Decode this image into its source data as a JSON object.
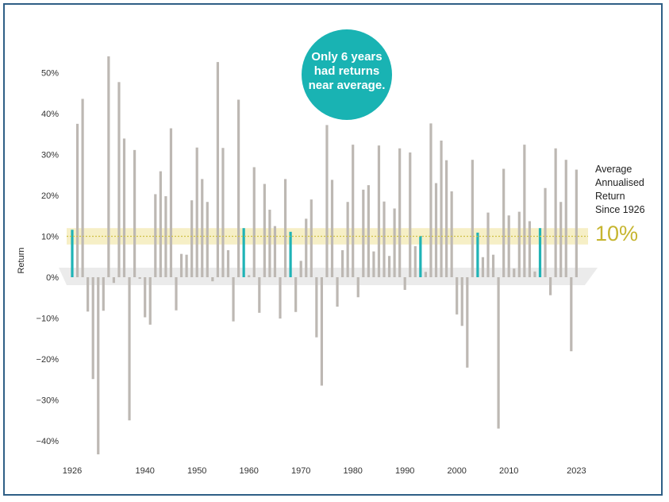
{
  "chart_data": {
    "type": "bar",
    "title": "",
    "xlabel": "",
    "ylabel": "Return",
    "ylim": [
      -45,
      55
    ],
    "y_ticks": [
      {
        "value": 50,
        "label": "50%"
      },
      {
        "value": 40,
        "label": "40%"
      },
      {
        "value": 30,
        "label": "30%"
      },
      {
        "value": 20,
        "label": "20%"
      },
      {
        "value": 10,
        "label": "10%"
      },
      {
        "value": 0,
        "label": "0%"
      },
      {
        "value": -10,
        "label": "−10%"
      },
      {
        "value": -20,
        "label": "−20%"
      },
      {
        "value": -30,
        "label": "−30%"
      },
      {
        "value": -40,
        "label": "−40%"
      }
    ],
    "x_ticks": [
      {
        "year": 1926,
        "label": "1926"
      },
      {
        "year": 1940,
        "label": "1940"
      },
      {
        "year": 1950,
        "label": "1950"
      },
      {
        "year": 1960,
        "label": "1960"
      },
      {
        "year": 1970,
        "label": "1970"
      },
      {
        "year": 1980,
        "label": "1980"
      },
      {
        "year": 1990,
        "label": "1990"
      },
      {
        "year": 2000,
        "label": "2000"
      },
      {
        "year": 2010,
        "label": "2010"
      },
      {
        "year": 2023,
        "label": "2023"
      }
    ],
    "start_year": 1926,
    "end_year": 2023,
    "returns": [
      11.6,
      37.5,
      43.6,
      -8.4,
      -24.9,
      -43.3,
      -8.2,
      54.0,
      -1.4,
      47.7,
      33.9,
      -35.0,
      31.1,
      -0.4,
      -9.8,
      -11.6,
      20.3,
      25.9,
      19.8,
      36.4,
      -8.1,
      5.7,
      5.5,
      18.8,
      31.7,
      24.0,
      18.4,
      -1.0,
      52.6,
      31.6,
      6.6,
      -10.8,
      43.4,
      12.0,
      0.5,
      26.9,
      -8.7,
      22.8,
      16.5,
      12.5,
      -10.1,
      24.0,
      11.1,
      -8.5,
      4.0,
      14.3,
      19.0,
      -14.7,
      -26.5,
      37.2,
      23.8,
      -7.2,
      6.6,
      18.4,
      32.4,
      -4.9,
      21.4,
      22.5,
      6.3,
      32.2,
      18.5,
      5.2,
      16.8,
      31.5,
      -3.1,
      30.5,
      7.6,
      10.1,
      1.3,
      37.6,
      23.0,
      33.4,
      28.6,
      21.0,
      -9.1,
      -11.9,
      -22.1,
      28.7,
      10.9,
      4.9,
      15.8,
      5.5,
      -37.0,
      26.5,
      15.1,
      2.1,
      16.0,
      32.4,
      13.7,
      1.4,
      12.0,
      21.8,
      -4.4,
      31.5,
      18.4,
      28.7,
      -18.1,
      26.3
    ],
    "series": [
      {
        "name": "Annual return",
        "color": "#bdb8b3"
      }
    ],
    "highlight_years": [
      1926,
      1959,
      1968,
      1993,
      2004,
      2016
    ],
    "highlight_color": "#1fb3b6",
    "average": {
      "value": 10,
      "band": [
        8,
        12
      ],
      "line_color": "#cfc046",
      "band_color": "#f6efc6"
    }
  },
  "annotation": {
    "bubble_lines": [
      "Only 6 years",
      "had returns",
      "near average."
    ],
    "bubble_color": "#19b3b3",
    "avg_label_lines": [
      "Average",
      "Annualised",
      "Return",
      "Since 1926"
    ],
    "avg_value": "10%"
  }
}
